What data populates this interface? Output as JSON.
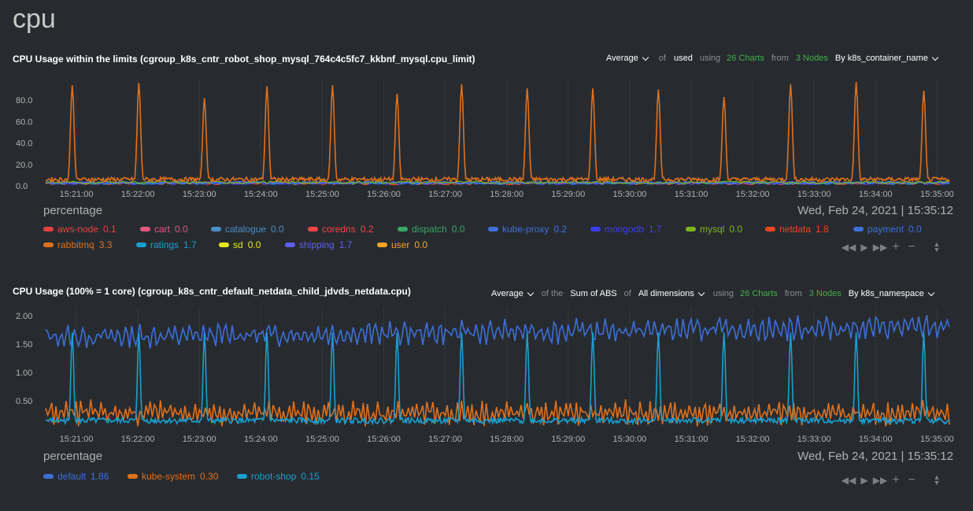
{
  "page": {
    "title": "cpu"
  },
  "charts": [
    {
      "title": "CPU Usage within the limits (cgroup_k8s_cntr_robot_shop_mysql_764c4c5fc7_kkbnf_mysql.cpu_limit)",
      "controls": {
        "method": "Average",
        "of_text": "of",
        "dimension": "used",
        "using_text": "using",
        "charts": "26 Charts",
        "from_text": "from",
        "nodes": "3 Nodes",
        "group_by": "By k8s_container_name"
      },
      "units": "percentage",
      "timestamp": "Wed, Feb 24, 2021 | 15:35:12",
      "y_ticks": [
        "80.0",
        "60.0",
        "40.0",
        "20.0",
        "0.0"
      ],
      "legend": [
        {
          "name": "aws-node",
          "value": "0.1",
          "color": "#e8403f"
        },
        {
          "name": "cart",
          "value": "0.0",
          "color": "#e05680"
        },
        {
          "name": "catalogue",
          "value": "0.0",
          "color": "#4b8ec8"
        },
        {
          "name": "coredns",
          "value": "0.2",
          "color": "#f04545"
        },
        {
          "name": "dispatch",
          "value": "0.0",
          "color": "#3aa564"
        },
        {
          "name": "kube-proxy",
          "value": "0.2",
          "color": "#3f6fd8"
        },
        {
          "name": "mongodb",
          "value": "1.7",
          "color": "#3c3cef"
        },
        {
          "name": "mysql",
          "value": "0.0",
          "color": "#7cb518"
        },
        {
          "name": "netdata",
          "value": "1.8",
          "color": "#f0441e"
        },
        {
          "name": "payment",
          "value": "0.0",
          "color": "#3c6fd8"
        },
        {
          "name": "rabbitmq",
          "value": "3.3",
          "color": "#e0701c"
        },
        {
          "name": "ratings",
          "value": "1.7",
          "color": "#1a9fcf"
        },
        {
          "name": "sd",
          "value": "0.0",
          "color": "#e8e81e"
        },
        {
          "name": "shipping",
          "value": "1.7",
          "color": "#5f5fef"
        },
        {
          "name": "user",
          "value": "0.0",
          "color": "#f5a623"
        }
      ]
    },
    {
      "title": "CPU Usage (100% = 1 core) (cgroup_k8s_cntr_default_netdata_child_jdvds_netdata.cpu)",
      "controls": {
        "method": "Average",
        "of_the_text": "of the",
        "aggregate": "Sum of ABS",
        "of_text": "of",
        "dimension": "All dimensions",
        "using_text": "using",
        "charts": "26 Charts",
        "from_text": "from",
        "nodes": "3 Nodes",
        "group_by": "By k8s_namespace"
      },
      "units": "percentage",
      "timestamp": "Wed, Feb 24, 2021 | 15:35:12",
      "y_ticks": [
        "2.00",
        "1.50",
        "1.00",
        "0.50"
      ],
      "legend": [
        {
          "name": "default",
          "value": "1.86",
          "color": "#3c6fd8"
        },
        {
          "name": "kube-system",
          "value": "0.30",
          "color": "#e0701c"
        },
        {
          "name": "robot-shop",
          "value": "0.15",
          "color": "#1a9fcf"
        }
      ]
    }
  ],
  "x_ticks": [
    "15:21:00",
    "15:22:00",
    "15:23:00",
    "15:24:00",
    "15:25:00",
    "15:26:00",
    "15:27:00",
    "15:28:00",
    "15:29:00",
    "15:30:00",
    "15:31:00",
    "15:32:00",
    "15:33:00",
    "15:34:00",
    "15:35:00"
  ],
  "toolbox": {
    "icons": [
      "rewind-icon",
      "play-icon",
      "fast-forward-icon",
      "zoom-in-icon",
      "zoom-out-icon",
      "resize-icon"
    ]
  },
  "chart_data": [
    {
      "type": "line",
      "ylabel": "percentage",
      "ylim": [
        0,
        100
      ],
      "x_range": [
        "15:20:30",
        "15:35:12"
      ],
      "series": [
        {
          "name": "rabbitmq",
          "peaks_at": [
            "15:20:56",
            "15:22:01",
            "15:23:05",
            "15:24:06",
            "15:25:10",
            "15:26:13",
            "15:27:16",
            "15:28:20",
            "15:29:24",
            "15:30:28",
            "15:31:32",
            "15:32:37",
            "15:33:41",
            "15:34:47",
            "15:35:10"
          ],
          "peak_values": [
            94,
            96,
            82,
            93,
            94,
            86,
            95,
            91,
            91,
            90,
            83,
            95,
            97,
            89,
            0
          ],
          "baseline": 6
        },
        {
          "name": "netdata",
          "baseline": 1.8
        },
        {
          "name": "mongodb",
          "baseline": 1.7
        },
        {
          "name": "ratings",
          "baseline": 1.7
        },
        {
          "name": "shipping",
          "baseline": 1.7
        }
      ]
    },
    {
      "type": "line",
      "ylabel": "percentage",
      "ylim": [
        0,
        2.15
      ],
      "x_range": [
        "15:20:30",
        "15:35:12"
      ],
      "series": [
        {
          "name": "default",
          "baseline": 1.75,
          "range": [
            1.5,
            2.05
          ]
        },
        {
          "name": "kube-system",
          "baseline": 0.3,
          "range": [
            0.05,
            0.6
          ]
        },
        {
          "name": "robot-shop",
          "baseline": 0.15,
          "spike_value": 1.7
        }
      ]
    }
  ]
}
